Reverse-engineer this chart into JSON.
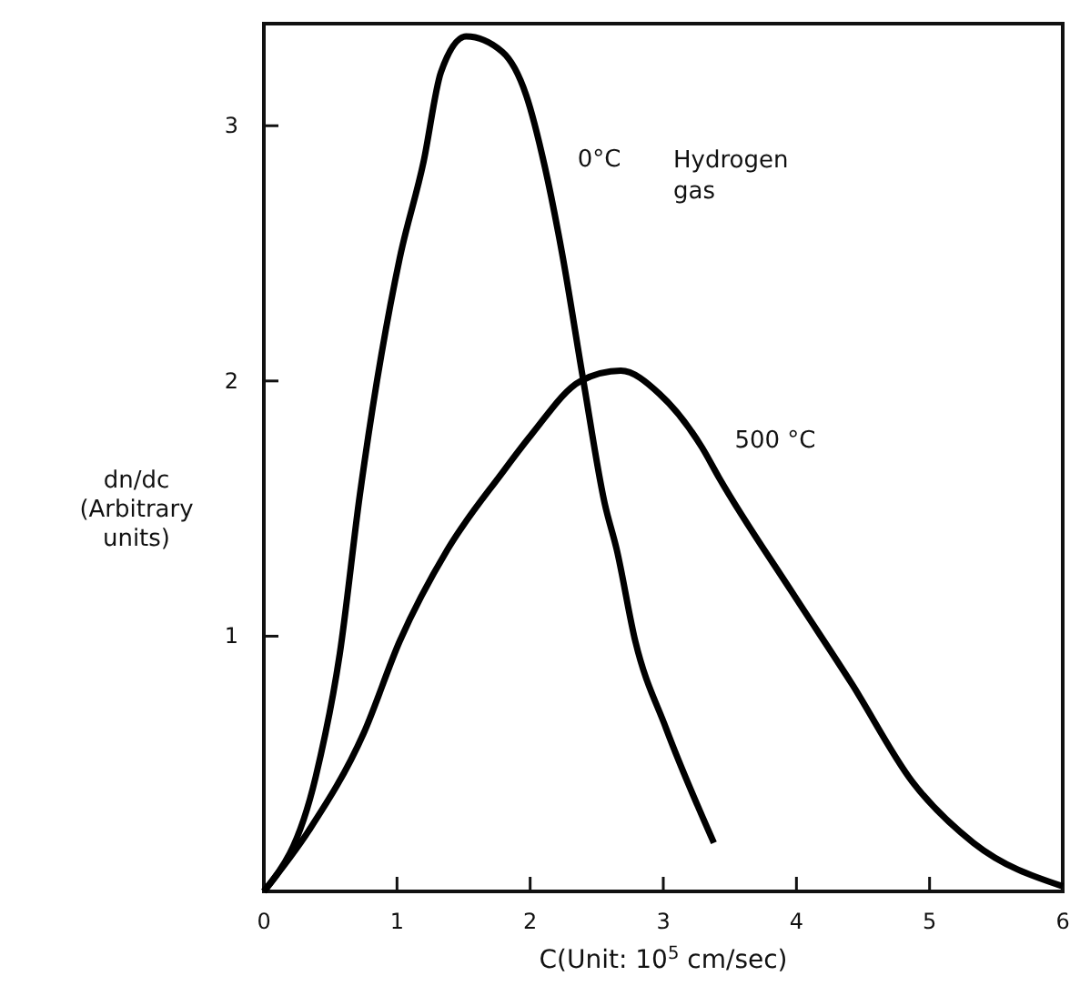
{
  "chart_data": {
    "type": "line",
    "xlabel": "C(Unit: 10$^{5}$ cm/sec)",
    "ylabel": "dn/dc\n(Arbitrary\nunits)",
    "xlim": [
      0,
      6
    ],
    "ylim": [
      0,
      3.4
    ],
    "xticks": [
      0,
      1,
      2,
      3,
      4,
      5,
      6
    ],
    "yticks": [
      1,
      2,
      3
    ],
    "grid": false,
    "line_style": "solid",
    "marker": "none",
    "series": [
      {
        "name": "0°C",
        "color": "#000000",
        "x": [
          0,
          0.39,
          0.57,
          0.72,
          1.02,
          1.2,
          1.33,
          1.52,
          1.79,
          1.97,
          2.11,
          2.24,
          2.4,
          2.56,
          2.65,
          2.79,
          3.02,
          3.38
        ],
        "values": [
          0,
          0.45,
          0.93,
          1.55,
          2.48,
          2.86,
          3.21,
          3.35,
          3.29,
          3.12,
          2.84,
          2.5,
          2.0,
          1.52,
          1.34,
          0.98,
          0.64,
          0.19
        ]
      },
      {
        "name": "500 °C",
        "color": "#000000",
        "x": [
          0,
          0.34,
          0.75,
          1.02,
          1.38,
          1.79,
          2.01,
          2.38,
          2.68,
          2.97,
          3.29,
          3.42,
          3.97,
          4.42,
          4.87,
          5.33,
          6.0
        ],
        "values": [
          0,
          0.24,
          0.62,
          0.98,
          1.34,
          1.64,
          1.79,
          2.0,
          2.04,
          1.95,
          1.74,
          1.62,
          1.17,
          0.81,
          0.43,
          0.19,
          0.02
        ]
      }
    ],
    "annotations": [
      "Hydrogen\ngas"
    ]
  }
}
